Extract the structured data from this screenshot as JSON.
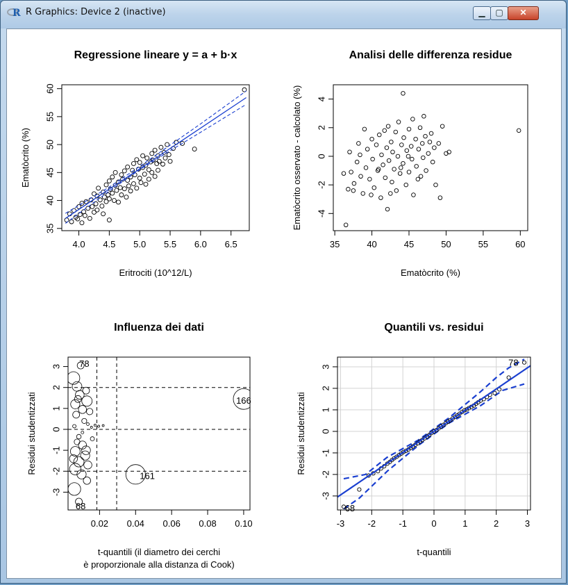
{
  "window": {
    "title": "R Graphics: Device 2 (inactive)",
    "app_icon": "r-logo-icon",
    "controls": [
      "minimize-icon",
      "maximize-icon",
      "close-icon"
    ]
  },
  "chart_data": [
    {
      "type": "scatter",
      "title": "Regressione lineare y = a + b·x",
      "xlabel": "Eritrociti (10^12/L)",
      "ylabel": "Ematòcrito (%)",
      "xlim": [
        3.72,
        6.8
      ],
      "ylim": [
        34.6,
        60.7
      ],
      "xticks": [
        "4.0",
        "4.5",
        "5.0",
        "5.5",
        "6.0",
        "6.5"
      ],
      "xtick_values": [
        4.0,
        4.5,
        5.0,
        5.5,
        6.0,
        6.5
      ],
      "yticks": [
        "35",
        "40",
        "45",
        "50",
        "55",
        "60"
      ],
      "ytick_values": [
        35,
        40,
        45,
        50,
        55,
        60
      ],
      "regression": {
        "x": [
          3.78,
          6.75
        ],
        "y": [
          36.8,
          58.4
        ]
      },
      "conf_upper": {
        "x": [
          3.78,
          4.5,
          5.0,
          5.5,
          6.0,
          6.75
        ],
        "y": [
          37.7,
          42.4,
          46.1,
          49.9,
          53.7,
          59.6
        ]
      },
      "conf_lower": {
        "x": [
          3.78,
          4.5,
          5.0,
          5.5,
          6.0,
          6.75
        ],
        "y": [
          35.9,
          41.7,
          45.5,
          48.9,
          52.2,
          57.2
        ]
      },
      "points": [
        [
          3.8,
          36.5
        ],
        [
          3.85,
          37.6
        ],
        [
          3.88,
          36.2
        ],
        [
          3.92,
          38.2
        ],
        [
          3.95,
          37.0
        ],
        [
          3.98,
          36.7
        ],
        [
          4.0,
          38.9
        ],
        [
          4.02,
          37.5
        ],
        [
          4.05,
          36.0
        ],
        [
          4.05,
          39.5
        ],
        [
          4.08,
          38.0
        ],
        [
          4.1,
          37.3
        ],
        [
          4.12,
          39.8
        ],
        [
          4.15,
          38.6
        ],
        [
          4.18,
          36.8
        ],
        [
          4.2,
          40.1
        ],
        [
          4.22,
          38.9
        ],
        [
          4.25,
          41.2
        ],
        [
          4.25,
          37.9
        ],
        [
          4.28,
          39.4
        ],
        [
          4.3,
          40.8
        ],
        [
          4.3,
          38.3
        ],
        [
          4.32,
          42.2
        ],
        [
          4.35,
          40.1
        ],
        [
          4.38,
          39.0
        ],
        [
          4.4,
          41.5
        ],
        [
          4.4,
          37.6
        ],
        [
          4.42,
          40.6
        ],
        [
          4.45,
          42.8
        ],
        [
          4.45,
          39.8
        ],
        [
          4.48,
          41.0
        ],
        [
          4.5,
          43.5
        ],
        [
          4.5,
          40.3
        ],
        [
          4.5,
          36.5
        ],
        [
          4.52,
          42.0
        ],
        [
          4.55,
          41.3
        ],
        [
          4.55,
          44.2
        ],
        [
          4.58,
          40.0
        ],
        [
          4.6,
          42.7
        ],
        [
          4.6,
          45.0
        ],
        [
          4.62,
          41.8
        ],
        [
          4.65,
          43.3
        ],
        [
          4.65,
          39.7
        ],
        [
          4.68,
          42.3
        ],
        [
          4.7,
          44.6
        ],
        [
          4.7,
          41.0
        ],
        [
          4.72,
          43.8
        ],
        [
          4.75,
          42.1
        ],
        [
          4.75,
          45.3
        ],
        [
          4.78,
          40.6
        ],
        [
          4.8,
          43.6
        ],
        [
          4.8,
          46.0
        ],
        [
          4.82,
          42.6
        ],
        [
          4.85,
          44.2
        ],
        [
          4.85,
          41.7
        ],
        [
          4.88,
          45.4
        ],
        [
          4.9,
          43.0
        ],
        [
          4.9,
          46.6
        ],
        [
          4.92,
          44.6
        ],
        [
          4.95,
          42.2
        ],
        [
          4.95,
          47.3
        ],
        [
          4.98,
          45.6
        ],
        [
          5.0,
          44.0
        ],
        [
          5.0,
          46.8
        ],
        [
          5.02,
          43.2
        ],
        [
          5.05,
          45.9
        ],
        [
          5.05,
          48.0
        ],
        [
          5.08,
          44.7
        ],
        [
          5.1,
          46.3
        ],
        [
          5.1,
          42.9
        ],
        [
          5.12,
          47.6
        ],
        [
          5.15,
          45.5
        ],
        [
          5.15,
          43.8
        ],
        [
          5.18,
          46.9
        ],
        [
          5.2,
          48.4
        ],
        [
          5.2,
          45.0
        ],
        [
          5.22,
          47.2
        ],
        [
          5.25,
          44.3
        ],
        [
          5.25,
          49.0
        ],
        [
          5.28,
          46.6
        ],
        [
          5.3,
          48.0
        ],
        [
          5.3,
          45.4
        ],
        [
          5.32,
          47.0
        ],
        [
          5.35,
          49.5
        ],
        [
          5.38,
          46.5
        ],
        [
          5.4,
          48.6
        ],
        [
          5.42,
          47.6
        ],
        [
          5.45,
          50.0
        ],
        [
          5.48,
          48.2
        ],
        [
          5.5,
          47.0
        ],
        [
          5.55,
          49.3
        ],
        [
          5.6,
          50.4
        ],
        [
          5.7,
          50.2
        ],
        [
          5.9,
          49.2
        ],
        [
          6.72,
          59.8
        ]
      ]
    },
    {
      "type": "scatter",
      "title": "Analisi delle differenza residue",
      "xlabel": "Ematòcrito (%)",
      "ylabel": "Ematòcrito osservato - calcolato (%)",
      "xlim": [
        34.8,
        61.0
      ],
      "ylim": [
        -5.2,
        5.0
      ],
      "xticks": [
        "35",
        "40",
        "45",
        "50",
        "55",
        "60"
      ],
      "xtick_values": [
        35,
        40,
        45,
        50,
        55,
        60
      ],
      "yticks": [
        "-4",
        "-2",
        "0",
        "2",
        "4"
      ],
      "ytick_values": [
        -4,
        -2,
        0,
        2,
        4
      ],
      "points": [
        [
          36.5,
          -4.8
        ],
        [
          36.2,
          -1.2
        ],
        [
          36.8,
          -2.3
        ],
        [
          37.0,
          0.3
        ],
        [
          37.2,
          -1.1
        ],
        [
          37.6,
          -1.9
        ],
        [
          38.0,
          -0.4
        ],
        [
          38.2,
          0.9
        ],
        [
          38.5,
          -1.4
        ],
        [
          38.8,
          -2.6
        ],
        [
          39.0,
          1.9
        ],
        [
          39.2,
          -0.8
        ],
        [
          39.4,
          0.5
        ],
        [
          39.7,
          -1.6
        ],
        [
          40.0,
          1.2
        ],
        [
          40.1,
          -0.2
        ],
        [
          40.3,
          -2.2
        ],
        [
          40.6,
          0.8
        ],
        [
          40.8,
          -1.0
        ],
        [
          41.0,
          1.5
        ],
        [
          41.2,
          -2.9
        ],
        [
          41.3,
          0.1
        ],
        [
          41.5,
          -0.6
        ],
        [
          41.7,
          1.8
        ],
        [
          41.8,
          -1.5
        ],
        [
          42.0,
          0.6
        ],
        [
          42.1,
          -3.7
        ],
        [
          42.2,
          2.1
        ],
        [
          42.3,
          -0.3
        ],
        [
          42.6,
          1.0
        ],
        [
          42.7,
          -1.8
        ],
        [
          42.8,
          0.3
        ],
        [
          43.0,
          -0.9
        ],
        [
          43.2,
          1.7
        ],
        [
          43.3,
          -2.4
        ],
        [
          43.5,
          0.0
        ],
        [
          43.6,
          2.4
        ],
        [
          43.8,
          -1.2
        ],
        [
          44.0,
          0.8
        ],
        [
          44.2,
          4.4
        ],
        [
          44.2,
          -0.5
        ],
        [
          44.3,
          1.3
        ],
        [
          44.6,
          -2.0
        ],
        [
          44.7,
          0.4
        ],
        [
          45.0,
          1.9
        ],
        [
          45.0,
          -1.1
        ],
        [
          45.3,
          0.7
        ],
        [
          45.4,
          -0.2
        ],
        [
          45.5,
          2.6
        ],
        [
          45.6,
          -2.7
        ],
        [
          45.9,
          1.2
        ],
        [
          46.0,
          -0.7
        ],
        [
          46.3,
          0.5
        ],
        [
          46.5,
          2.0
        ],
        [
          46.6,
          -1.4
        ],
        [
          46.8,
          0.9
        ],
        [
          46.9,
          -0.1
        ],
        [
          47.0,
          2.8
        ],
        [
          47.2,
          1.4
        ],
        [
          47.3,
          -1.0
        ],
        [
          47.6,
          0.2
        ],
        [
          48.0,
          1.6
        ],
        [
          48.2,
          -0.4
        ],
        [
          48.4,
          0.6
        ],
        [
          48.6,
          -2.0
        ],
        [
          49.0,
          0.9
        ],
        [
          49.2,
          -2.9
        ],
        [
          49.5,
          2.1
        ],
        [
          50.0,
          0.2
        ],
        [
          50.4,
          0.3
        ],
        [
          59.8,
          1.8
        ],
        [
          37.5,
          -2.4
        ],
        [
          38.4,
          0.1
        ],
        [
          39.9,
          -2.7
        ],
        [
          40.9,
          -0.9
        ],
        [
          42.5,
          -2.6
        ],
        [
          43.9,
          -0.8
        ],
        [
          44.9,
          0.0
        ],
        [
          46.2,
          -1.6
        ],
        [
          47.8,
          1.0
        ]
      ]
    },
    {
      "type": "scatter",
      "title": "Influenza dei dati",
      "xlabel": "t-quantili (il diametro dei cerchi",
      "xlabel2": "è proporzionale alla distanza di Cook)",
      "ylabel": "Residui studentizzati",
      "xlim": [
        0.0025,
        0.1035
      ],
      "ylim": [
        -3.85,
        3.45
      ],
      "xticks": [
        "0.02",
        "0.04",
        "0.06",
        "0.08",
        "0.10"
      ],
      "xtick_values": [
        0.02,
        0.04,
        0.06,
        0.08,
        0.1
      ],
      "yticks": [
        "-3",
        "-2",
        "-1",
        "0",
        "1",
        "2",
        "3"
      ],
      "ytick_values": [
        -3,
        -2,
        -1,
        0,
        1,
        2,
        3
      ],
      "hlines": [
        -2,
        0,
        2
      ],
      "vlines": [
        0.0185,
        0.0295
      ],
      "labels": [
        {
          "text": "78",
          "x": 0.0115,
          "y": 3.15
        },
        {
          "text": "166",
          "x": 0.1,
          "y": 1.4
        },
        {
          "text": "161",
          "x": 0.0465,
          "y": -2.2
        },
        {
          "text": "68",
          "x": 0.0095,
          "y": -3.65
        }
      ],
      "circles": [
        [
          0.1,
          1.45,
          0.9
        ],
        [
          0.04,
          -2.15,
          0.85
        ],
        [
          0.0095,
          3.05,
          0.3
        ],
        [
          0.0085,
          -3.45,
          0.3
        ],
        [
          0.0055,
          2.45,
          0.55
        ],
        [
          0.006,
          -2.85,
          0.55
        ],
        [
          0.013,
          1.35,
          0.45
        ],
        [
          0.0075,
          2.05,
          0.42
        ],
        [
          0.009,
          1.65,
          0.38
        ],
        [
          0.0065,
          1.2,
          0.4
        ],
        [
          0.0105,
          0.95,
          0.35
        ],
        [
          0.007,
          0.7,
          0.3
        ],
        [
          0.0115,
          0.4,
          0.22
        ],
        [
          0.0135,
          0.25,
          0.12
        ],
        [
          0.0155,
          0.1,
          0.08
        ],
        [
          0.0175,
          0.2,
          0.06
        ],
        [
          0.0195,
          0.15,
          0.05
        ],
        [
          0.022,
          0.18,
          0.04
        ],
        [
          0.0085,
          -0.35,
          0.2
        ],
        [
          0.0105,
          -0.75,
          0.35
        ],
        [
          0.0065,
          -1.05,
          0.42
        ],
        [
          0.012,
          -1.25,
          0.4
        ],
        [
          0.0085,
          -1.55,
          0.45
        ],
        [
          0.0135,
          -1.7,
          0.35
        ],
        [
          0.0065,
          -1.9,
          0.5
        ],
        [
          0.01,
          -2.15,
          0.4
        ],
        [
          0.013,
          -2.45,
          0.32
        ],
        [
          0.0075,
          -0.6,
          0.25
        ],
        [
          0.006,
          0.15,
          0.15
        ],
        [
          0.0145,
          0.85,
          0.28
        ],
        [
          0.0125,
          1.85,
          0.3
        ],
        [
          0.0055,
          -1.4,
          0.35
        ],
        [
          0.0105,
          -0.15,
          0.12
        ],
        [
          0.016,
          -0.45,
          0.18
        ],
        [
          0.0125,
          -1.0,
          0.38
        ],
        [
          0.008,
          1.45,
          0.3
        ]
      ]
    },
    {
      "type": "scatter",
      "title": "Quantili vs. residui",
      "xlabel": "t-quantili",
      "ylabel": "Residui studentizzati",
      "xlim": [
        -3.1,
        3.1
      ],
      "ylim": [
        -3.65,
        3.45
      ],
      "xticks": [
        "-3",
        "-2",
        "-1",
        "0",
        "1",
        "2",
        "3"
      ],
      "xtick_values": [
        -3,
        -2,
        -1,
        0,
        1,
        2,
        3
      ],
      "yticks": [
        "-3",
        "-2",
        "-1",
        "0",
        "1",
        "2",
        "3"
      ],
      "ytick_values": [
        -3,
        -2,
        -1,
        0,
        1,
        2,
        3
      ],
      "grid": true,
      "labels": [
        {
          "text": "78",
          "x": 2.55,
          "y": 3.2
        },
        {
          "text": "68",
          "x": -2.7,
          "y": -3.55
        }
      ],
      "fit": {
        "x": [
          -3.1,
          3.1
        ],
        "y": [
          -3.05,
          3.05
        ]
      },
      "band_upper": {
        "x": [
          -2.9,
          -2.2,
          -1.5,
          -0.5,
          0.5,
          1.5,
          2.0,
          2.4,
          2.9
        ],
        "y": [
          -2.2,
          -2.0,
          -1.2,
          -0.4,
          0.65,
          1.85,
          2.5,
          2.95,
          3.35
        ]
      },
      "band_lower": {
        "x": [
          -2.9,
          -2.4,
          -2.0,
          -1.5,
          -0.5,
          0.5,
          1.5,
          2.2,
          2.9
        ],
        "y": [
          -3.6,
          -3.1,
          -2.55,
          -1.85,
          -0.65,
          0.4,
          1.2,
          1.9,
          2.2
        ]
      },
      "qq_x": [
        -2.9,
        -2.4,
        -2.1,
        -1.95,
        -1.8,
        -1.7,
        -1.6,
        -1.5,
        -1.42,
        -1.35,
        -1.28,
        -1.2,
        -1.12,
        -1.05,
        -0.98,
        -0.9,
        -0.82,
        -0.75,
        -0.68,
        -0.6,
        -0.52,
        -0.45,
        -0.38,
        -0.3,
        -0.22,
        -0.15,
        -0.08,
        0.0,
        0.08,
        0.15,
        0.22,
        0.3,
        0.38,
        0.45,
        0.52,
        0.6,
        0.68,
        0.75,
        0.82,
        0.9,
        0.98,
        1.05,
        1.12,
        1.2,
        1.28,
        1.35,
        1.42,
        1.5,
        1.6,
        1.7,
        1.8,
        1.95,
        2.1,
        2.4,
        2.9
      ],
      "qq_y": [
        -3.5,
        -2.7,
        -2.05,
        -1.95,
        -1.85,
        -1.72,
        -1.62,
        -1.5,
        -1.42,
        -1.33,
        -1.25,
        -1.18,
        -1.1,
        -1.03,
        -0.96,
        -0.9,
        -0.84,
        -0.77,
        -0.7,
        -0.62,
        -0.55,
        -0.47,
        -0.4,
        -0.32,
        -0.24,
        -0.16,
        -0.08,
        0.0,
        0.06,
        0.14,
        0.22,
        0.3,
        0.38,
        0.45,
        0.52,
        0.6,
        0.67,
        0.74,
        0.82,
        0.9,
        0.98,
        1.02,
        1.08,
        1.14,
        1.2,
        1.28,
        1.35,
        1.43,
        1.5,
        1.6,
        1.7,
        1.78,
        1.95,
        2.5,
        3.2
      ]
    }
  ]
}
